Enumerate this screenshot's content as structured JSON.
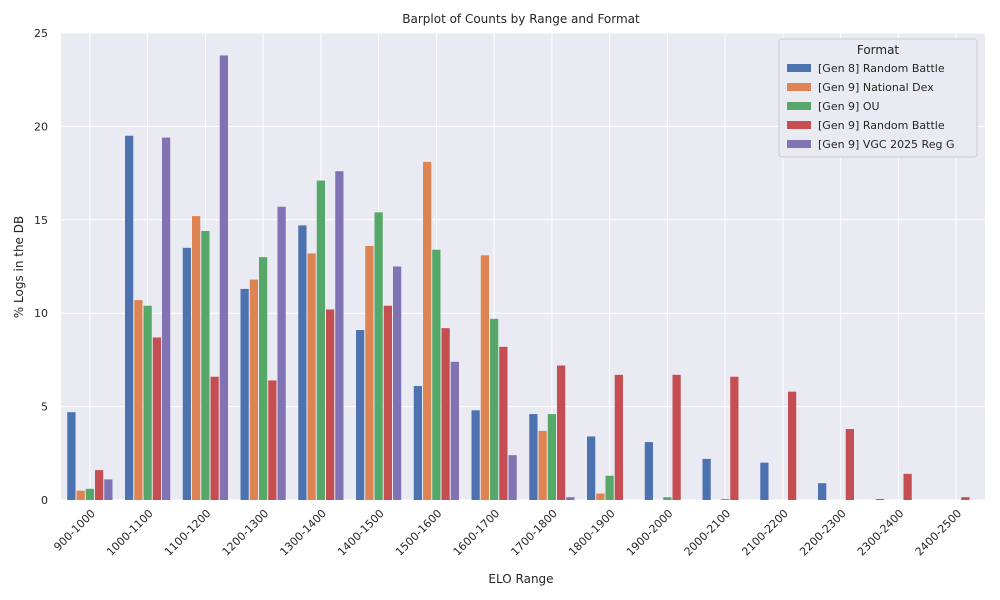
{
  "chart_data": {
    "type": "bar",
    "title": "Barplot of Counts by Range and Format",
    "xlabel": "ELO Range",
    "ylabel": "% Logs in the DB",
    "ylim": [
      0,
      25
    ],
    "yticks": [
      0,
      5,
      10,
      15,
      20,
      25
    ],
    "grid": true,
    "legend_title": "Format",
    "legend_position": "top-right",
    "categories": [
      "900-1000",
      "1000-1100",
      "1100-1200",
      "1200-1300",
      "1300-1400",
      "1400-1500",
      "1500-1600",
      "1600-1700",
      "1700-1800",
      "1800-1900",
      "1900-2000",
      "2000-2100",
      "2100-2200",
      "2200-2300",
      "2300-2400",
      "2400-2500"
    ],
    "series": [
      {
        "name": "[Gen 8] Random Battle",
        "color": "#4c72b0",
        "values": [
          4.7,
          19.5,
          13.5,
          11.3,
          14.7,
          9.1,
          6.1,
          4.8,
          4.6,
          3.4,
          3.1,
          2.2,
          2.0,
          0.9,
          0.05,
          0.0
        ]
      },
      {
        "name": "[Gen 9] National Dex",
        "color": "#dd8452",
        "values": [
          0.5,
          10.7,
          15.2,
          11.8,
          13.2,
          13.6,
          18.1,
          13.1,
          3.7,
          0.35,
          0.0,
          0.0,
          0.0,
          0.0,
          0.0,
          0.0
        ]
      },
      {
        "name": "[Gen 9] OU",
        "color": "#55a868",
        "values": [
          0.6,
          10.4,
          14.4,
          13.0,
          17.1,
          15.4,
          13.4,
          9.7,
          4.6,
          1.3,
          0.15,
          0.05,
          0.0,
          0.0,
          0.0,
          0.0
        ]
      },
      {
        "name": "[Gen 9] Random Battle",
        "color": "#c44e52",
        "values": [
          1.6,
          8.7,
          6.6,
          6.4,
          10.2,
          10.4,
          9.2,
          8.2,
          7.2,
          6.7,
          6.7,
          6.6,
          5.8,
          3.8,
          1.4,
          0.15
        ]
      },
      {
        "name": "[Gen 9] VGC 2025 Reg G",
        "color": "#8172b3",
        "values": [
          1.1,
          19.4,
          23.8,
          15.7,
          17.6,
          12.5,
          7.4,
          2.4,
          0.15,
          0.0,
          0.0,
          0.0,
          0.0,
          0.0,
          0.0,
          0.0
        ]
      }
    ]
  }
}
